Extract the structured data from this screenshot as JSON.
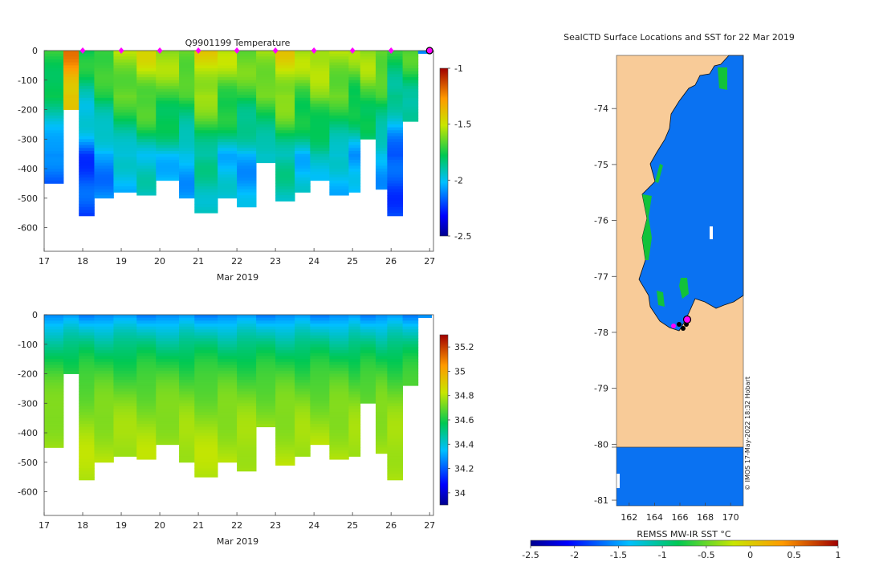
{
  "chart_data": [
    {
      "type": "heatmap",
      "title": "Q9901199  Temperature",
      "xlabel": "Mar 2019",
      "ylabel": "",
      "x_ticks": [
        "17",
        "18",
        "19",
        "20",
        "21",
        "22",
        "23",
        "24",
        "25",
        "26",
        "27"
      ],
      "x_range": [
        17,
        27.1
      ],
      "y_ticks": [
        "0",
        "-100",
        "-200",
        "-300",
        "-400",
        "-500",
        "-600"
      ],
      "y_range": [
        -680,
        0
      ],
      "colorbar": {
        "min": -2.5,
        "max": -1,
        "ticks": [
          "-1",
          "-1.5",
          "-2",
          "-2.5"
        ]
      },
      "profile_markers_day": [
        18,
        19,
        20,
        21,
        22,
        23,
        24,
        25,
        26
      ],
      "profiles": [
        {
          "t": 17.0,
          "bottom": -450,
          "t0": -1.7
        },
        {
          "t": 17.5,
          "bottom": -200,
          "t0": -1.25
        },
        {
          "t": 17.9,
          "bottom": -560,
          "t0": -1.75
        },
        {
          "t": 18.3,
          "bottom": -500,
          "t0": -1.65
        },
        {
          "t": 18.8,
          "bottom": -480,
          "t0": -1.55
        },
        {
          "t": 19.4,
          "bottom": -490,
          "t0": -1.5
        },
        {
          "t": 19.9,
          "bottom": -440,
          "t0": -1.55
        },
        {
          "t": 20.5,
          "bottom": -500,
          "t0": -1.6
        },
        {
          "t": 20.9,
          "bottom": -550,
          "t0": -1.45
        },
        {
          "t": 21.5,
          "bottom": -500,
          "t0": -1.55
        },
        {
          "t": 22.0,
          "bottom": -530,
          "t0": -1.6
        },
        {
          "t": 22.5,
          "bottom": -380,
          "t0": -1.55
        },
        {
          "t": 23.0,
          "bottom": -510,
          "t0": -1.45
        },
        {
          "t": 23.5,
          "bottom": -480,
          "t0": -1.55
        },
        {
          "t": 23.9,
          "bottom": -440,
          "t0": -1.5
        },
        {
          "t": 24.4,
          "bottom": -490,
          "t0": -1.55
        },
        {
          "t": 24.9,
          "bottom": -480,
          "t0": -1.6
        },
        {
          "t": 25.2,
          "bottom": -300,
          "t0": -1.55
        },
        {
          "t": 25.6,
          "bottom": -470,
          "t0": -1.6
        },
        {
          "t": 25.9,
          "bottom": -560,
          "t0": -1.75
        },
        {
          "t": 26.3,
          "bottom": -240,
          "t0": -1.7
        },
        {
          "t": 26.7,
          "bottom": -10,
          "t0": -2.05
        }
      ]
    },
    {
      "type": "heatmap",
      "title": "",
      "xlabel": "Mar 2019",
      "ylabel": "",
      "x_ticks": [
        "17",
        "18",
        "19",
        "20",
        "21",
        "22",
        "23",
        "24",
        "25",
        "26",
        "27"
      ],
      "x_range": [
        17,
        27.1
      ],
      "y_ticks": [
        "0",
        "-100",
        "-200",
        "-300",
        "-400",
        "-500",
        "-600"
      ],
      "y_range": [
        -680,
        0
      ],
      "colorbar": {
        "min": 33.9,
        "max": 35.3,
        "ticks": [
          "35.2",
          "35",
          "34.8",
          "34.6",
          "34.4",
          "34.2",
          "34"
        ]
      }
    },
    {
      "type": "heatmap",
      "title": "SealCTD Surface Locations and SST for 22 Mar 2019",
      "xlabel": "",
      "ylabel": "",
      "x_ticks": [
        "162",
        "164",
        "166",
        "168",
        "170"
      ],
      "x_range": [
        161,
        171
      ],
      "y_ticks": [
        "-74",
        "-75",
        "-76",
        "-77",
        "-78",
        "-79",
        "-80",
        "-81"
      ],
      "y_range": [
        -81.1,
        -73.05
      ],
      "colorbar": {
        "label": "REMSS MW-IR SST °C",
        "min": -2.5,
        "max": 1,
        "ticks": [
          "-2.5",
          "-2",
          "-1.5",
          "-1",
          "-0.5",
          "0",
          "0.5",
          "1"
        ]
      },
      "watermark": "© IMOS 17-May-2022 18:32 Hobart"
    }
  ],
  "colors": {
    "land": "#f8cb98",
    "water": "#0a72f2",
    "marker": "#ff00ff"
  }
}
